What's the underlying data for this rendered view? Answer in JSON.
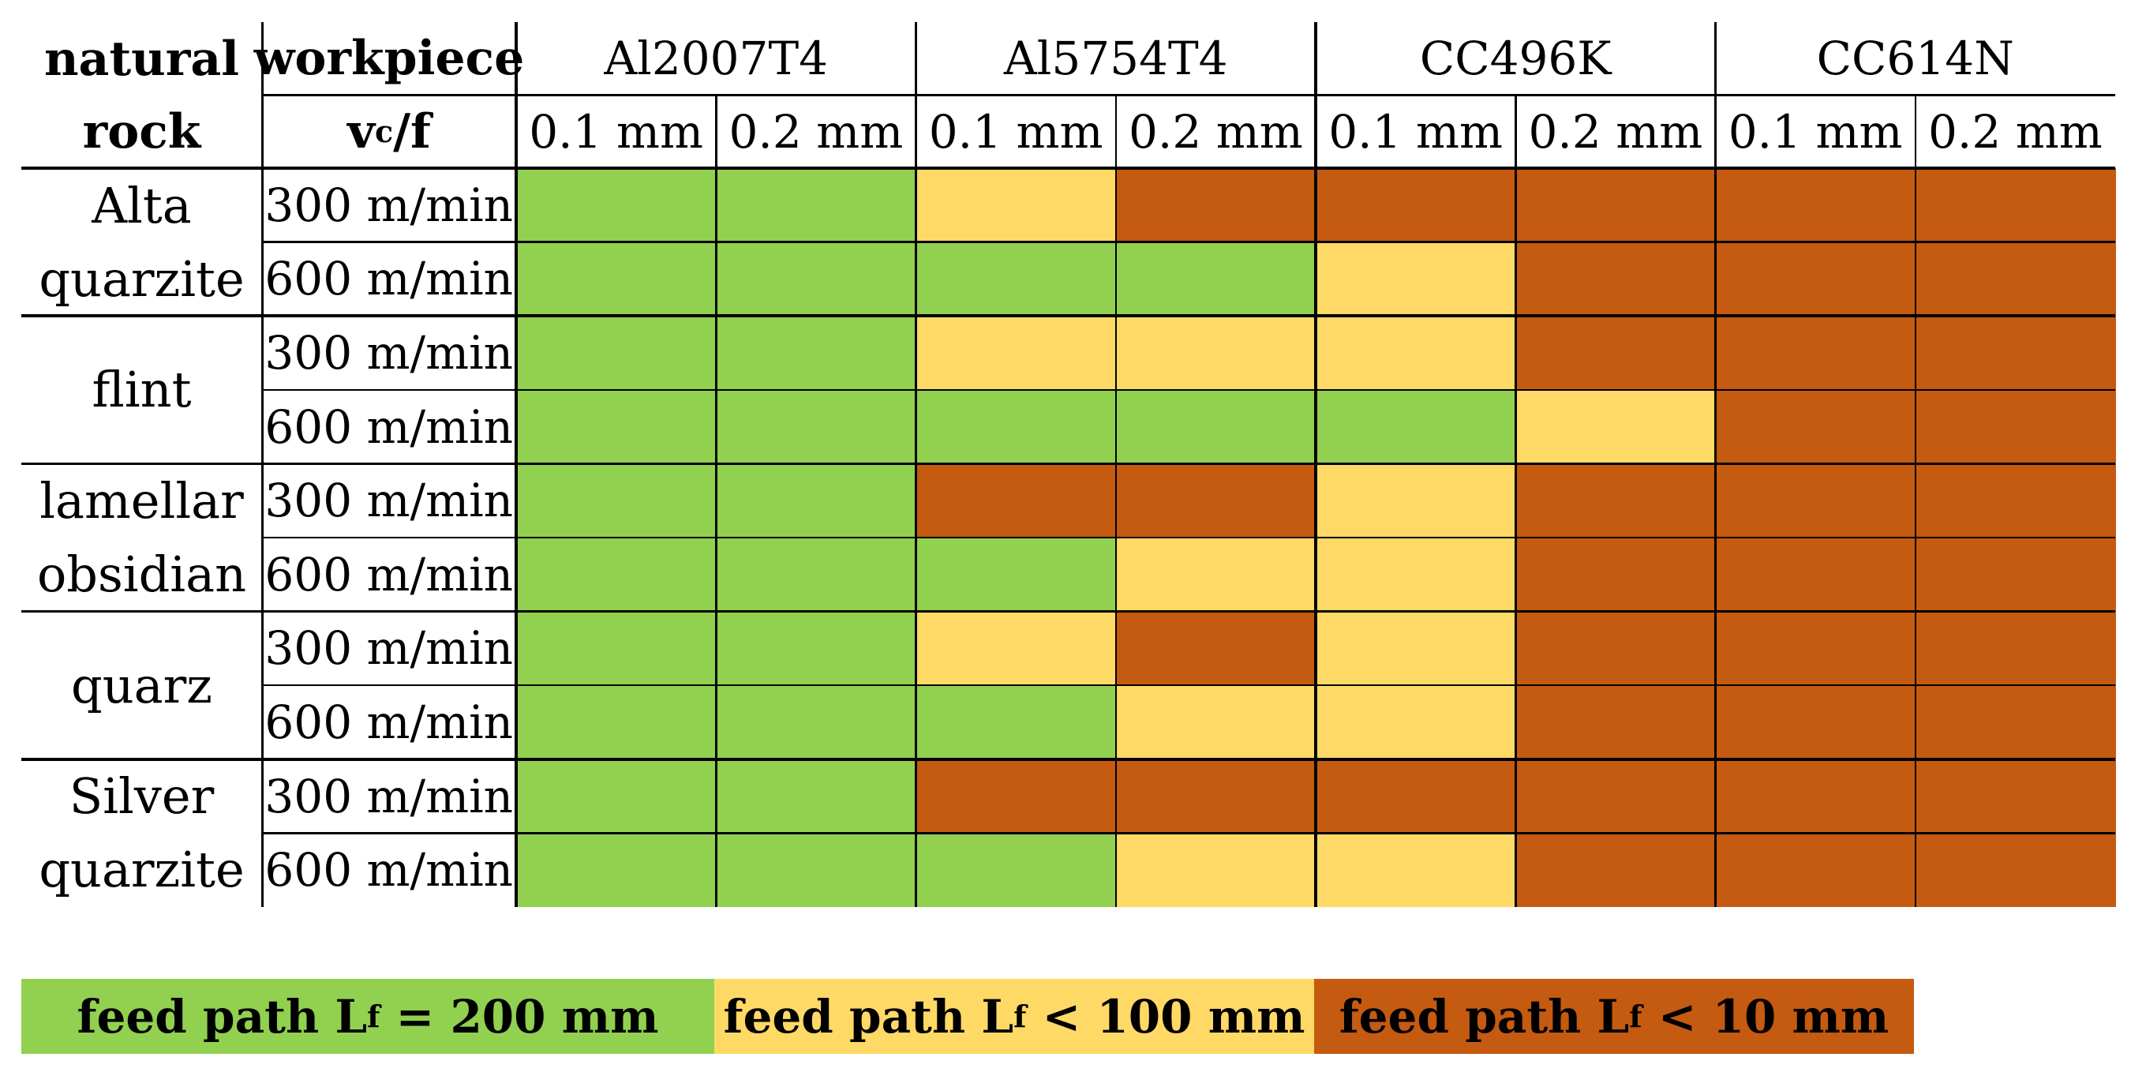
{
  "header": {
    "rock_label_1": "natural",
    "rock_label_2": "rock",
    "workpiece_label": "workpiece",
    "param_label_main": "v",
    "param_label_sub": "c",
    "param_label_end": "/f",
    "materials": [
      "Al2007T4",
      "Al5754T4",
      "CC496K",
      "CC614N"
    ],
    "feeds": [
      "0.1 mm",
      "0.2 mm",
      "0.1 mm",
      "0.2 mm",
      "0.1 mm",
      "0.2 mm",
      "0.1 mm",
      "0.2 mm"
    ]
  },
  "colors": {
    "green": "#92D050",
    "yellow": "#FFD966",
    "orange": "#C55A11"
  },
  "rows": [
    {
      "rock": "Alta quarzite",
      "speeds": [
        "300 m/min",
        "600 m/min"
      ],
      "cells": [
        [
          "green",
          "green",
          "yellow",
          "orange",
          "orange",
          "orange",
          "orange",
          "orange"
        ],
        [
          "green",
          "green",
          "green",
          "green",
          "yellow",
          "orange",
          "orange",
          "orange"
        ]
      ]
    },
    {
      "rock": "flint",
      "speeds": [
        "300 m/min",
        "600 m/min"
      ],
      "cells": [
        [
          "green",
          "green",
          "yellow",
          "yellow",
          "yellow",
          "orange",
          "orange",
          "orange"
        ],
        [
          "green",
          "green",
          "green",
          "green",
          "green",
          "yellow",
          "orange",
          "orange"
        ]
      ]
    },
    {
      "rock": "lamellar obsidian",
      "speeds": [
        "300 m/min",
        "600 m/min"
      ],
      "cells": [
        [
          "green",
          "green",
          "orange",
          "orange",
          "yellow",
          "orange",
          "orange",
          "orange"
        ],
        [
          "green",
          "green",
          "green",
          "yellow",
          "yellow",
          "orange",
          "orange",
          "orange"
        ]
      ]
    },
    {
      "rock": "quarz",
      "speeds": [
        "300 m/min",
        "600 m/min"
      ],
      "cells": [
        [
          "green",
          "green",
          "yellow",
          "orange",
          "yellow",
          "orange",
          "orange",
          "orange"
        ],
        [
          "green",
          "green",
          "green",
          "yellow",
          "yellow",
          "orange",
          "orange",
          "orange"
        ]
      ]
    },
    {
      "rock": "Silver quarzite",
      "speeds": [
        "300 m/min",
        "600 m/min"
      ],
      "cells": [
        [
          "green",
          "green",
          "orange",
          "orange",
          "orange",
          "orange",
          "orange",
          "orange"
        ],
        [
          "green",
          "green",
          "green",
          "yellow",
          "yellow",
          "orange",
          "orange",
          "orange"
        ]
      ]
    }
  ],
  "legend": [
    {
      "color": "green",
      "prefix": "feed path L",
      "sub": "f",
      "suffix": " = 200 mm"
    },
    {
      "color": "yellow",
      "prefix": "feed path L",
      "sub": "f",
      "suffix": " < 100 mm"
    },
    {
      "color": "orange",
      "prefix": "feed path L",
      "sub": "f",
      "suffix": " < 10 mm"
    }
  ]
}
